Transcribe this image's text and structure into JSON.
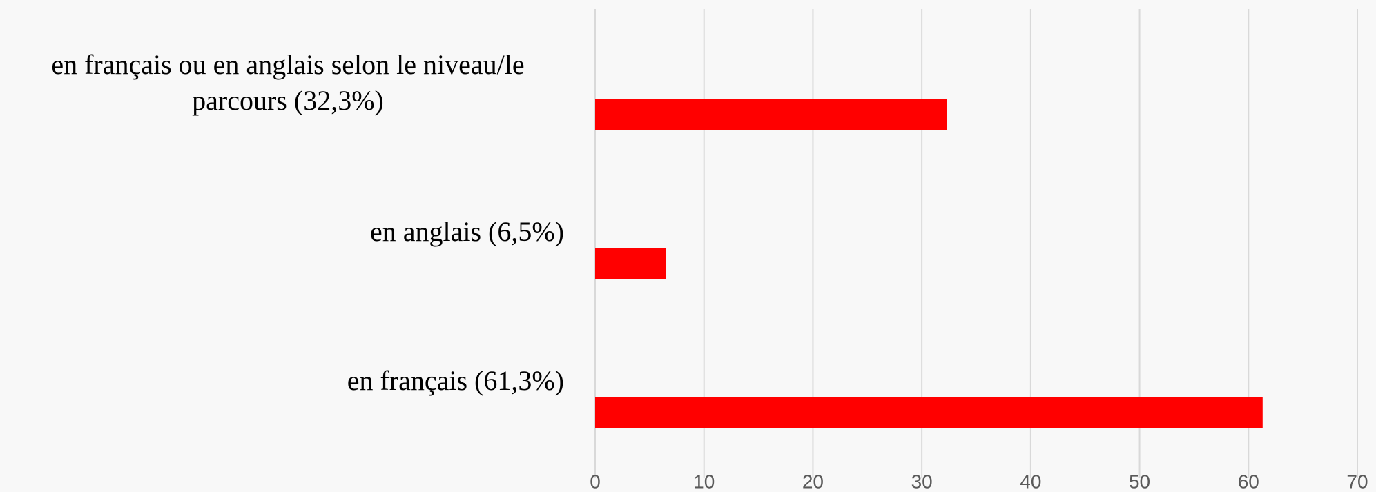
{
  "chart_data": {
    "type": "bar",
    "orientation": "horizontal",
    "categories": [
      "en français ou en anglais selon le niveau/le parcours (32,3%)",
      "en anglais (6,5%)",
      "en français (61,3%)"
    ],
    "values": [
      32.3,
      6.5,
      61.3
    ],
    "color": "#ff0000",
    "xlim": [
      0,
      70
    ],
    "xticks": [
      0,
      10,
      20,
      30,
      40,
      50,
      60,
      70
    ],
    "grid": true
  }
}
